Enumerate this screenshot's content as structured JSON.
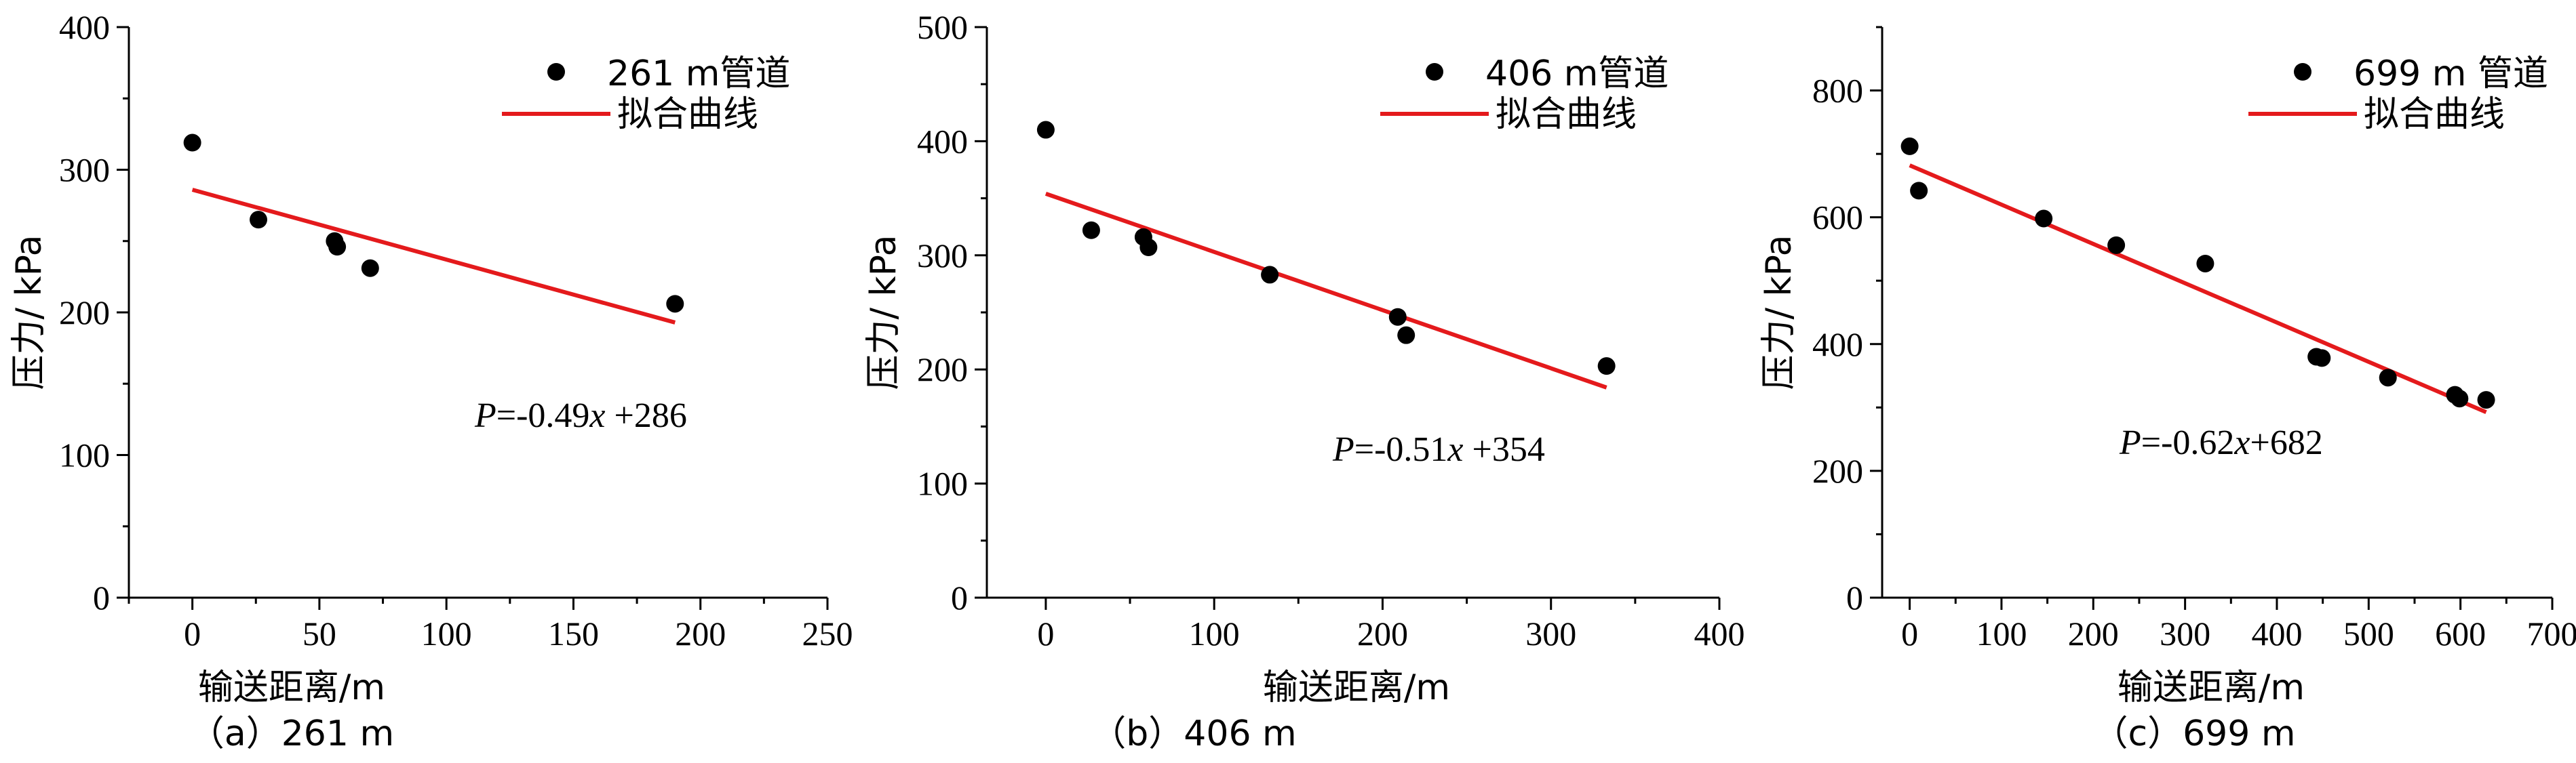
{
  "chart_data": [
    {
      "type": "scatter",
      "caption": "（a）261 m",
      "xlabel": "输送距离/m",
      "ylabel": "压力/ kPa",
      "xlim": [
        -25,
        250
      ],
      "ylim": [
        0,
        400
      ],
      "xticks": [
        0,
        50,
        100,
        150,
        200,
        250
      ],
      "yticks": [
        0,
        100,
        200,
        300,
        400
      ],
      "x_minor_step": 25,
      "y_minor_step": 50,
      "legend": {
        "position": "top-right",
        "scatter_label": "261 m管道",
        "line_label": "拟合曲线"
      },
      "colors": {
        "points": "#000000",
        "fit": "#e41a1c"
      },
      "points": [
        {
          "x": 0,
          "y": 319
        },
        {
          "x": 26,
          "y": 265
        },
        {
          "x": 56,
          "y": 250
        },
        {
          "x": 57,
          "y": 246
        },
        {
          "x": 70,
          "y": 231
        },
        {
          "x": 190,
          "y": 206
        }
      ],
      "fit": {
        "slope": -0.49,
        "intercept": 286,
        "x_start": 0,
        "x_end": 190
      },
      "equation": {
        "lhs": "P",
        "rhs": "=-0.49",
        "var": "x",
        "tail": " +286"
      }
    },
    {
      "type": "scatter",
      "caption": "（b）406 m",
      "xlabel": "输送距离/m",
      "ylabel": "压力/ kPa",
      "xlim": [
        -35,
        400
      ],
      "ylim": [
        0,
        500
      ],
      "xticks": [
        0,
        100,
        200,
        300,
        400
      ],
      "yticks": [
        0,
        100,
        200,
        300,
        400,
        500
      ],
      "x_minor_step": 50,
      "y_minor_step": 50,
      "legend": {
        "position": "top-right",
        "scatter_label": "406 m管道",
        "line_label": "拟合曲线"
      },
      "colors": {
        "points": "#000000",
        "fit": "#e41a1c"
      },
      "points": [
        {
          "x": 0,
          "y": 410
        },
        {
          "x": 27,
          "y": 322
        },
        {
          "x": 58,
          "y": 316
        },
        {
          "x": 61,
          "y": 307
        },
        {
          "x": 133,
          "y": 283
        },
        {
          "x": 209,
          "y": 246
        },
        {
          "x": 214,
          "y": 230
        },
        {
          "x": 333,
          "y": 203
        }
      ],
      "fit": {
        "slope": -0.51,
        "intercept": 354,
        "x_start": 0,
        "x_end": 333
      },
      "equation": {
        "lhs": "P",
        "rhs": "=-0.51",
        "var": "x",
        "tail": " +354"
      }
    },
    {
      "type": "scatter",
      "caption": "（c）699 m",
      "xlabel": "输送距离/m",
      "ylabel": "压力/ kPa",
      "xlim": [
        -30,
        700
      ],
      "ylim": [
        0,
        900
      ],
      "xticks": [
        0,
        100,
        200,
        300,
        400,
        500,
        600,
        700
      ],
      "yticks": [
        0,
        200,
        400,
        600,
        800
      ],
      "x_minor_step": 50,
      "y_minor_step": 100,
      "legend": {
        "position": "top-right",
        "scatter_label": "699 m 管道",
        "line_label": "拟合曲线"
      },
      "colors": {
        "points": "#000000",
        "fit": "#e41a1c"
      },
      "points": [
        {
          "x": 0,
          "y": 712
        },
        {
          "x": 10,
          "y": 642
        },
        {
          "x": 146,
          "y": 598
        },
        {
          "x": 225,
          "y": 556
        },
        {
          "x": 322,
          "y": 527
        },
        {
          "x": 443,
          "y": 380
        },
        {
          "x": 449,
          "y": 378
        },
        {
          "x": 521,
          "y": 347
        },
        {
          "x": 594,
          "y": 320
        },
        {
          "x": 599,
          "y": 314
        },
        {
          "x": 628,
          "y": 312
        }
      ],
      "fit": {
        "slope": -0.62,
        "intercept": 682,
        "x_start": 0,
        "x_end": 628
      },
      "equation": {
        "lhs": "P",
        "rhs": "=-0.62",
        "var": "x",
        "tail": "+682"
      }
    }
  ]
}
